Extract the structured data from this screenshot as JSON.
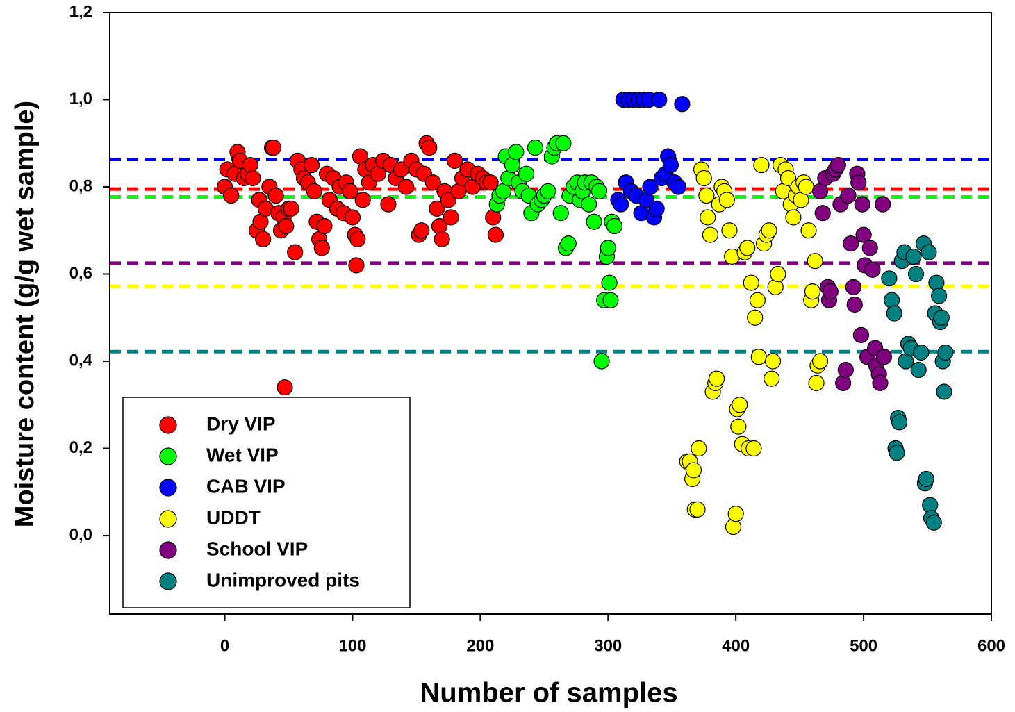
{
  "chart_data": {
    "type": "scatter",
    "x_label": "Number of samples",
    "y_label": "Moisture content (g/g wet sample)",
    "xlim": [
      -90,
      600
    ],
    "ylim": [
      -0.18,
      1.2
    ],
    "xticks": [
      0,
      100,
      200,
      300,
      400,
      500,
      600
    ],
    "yticks": [
      {
        "value": 0,
        "label": "0,0"
      },
      {
        "value": 0.2,
        "label": "0,2"
      },
      {
        "value": 0.4,
        "label": "0,4"
      },
      {
        "value": 0.6,
        "label": "0,6"
      },
      {
        "value": 0.8,
        "label": "0,8"
      },
      {
        "value": 1.0,
        "label": "1,0"
      },
      {
        "value": 1.2,
        "label": "1,2"
      }
    ],
    "legend_position": "lower left",
    "series": [
      {
        "name": "Dry VIP",
        "color": "#ff0000",
        "mean": 0.795,
        "x": [
          0,
          2,
          5,
          8,
          10,
          12,
          15,
          18,
          20,
          22,
          25,
          27,
          28,
          30,
          32,
          35,
          37,
          38,
          40,
          42,
          44,
          46,
          47,
          48,
          50,
          52,
          55,
          57,
          60,
          62,
          65,
          68,
          70,
          72,
          74,
          76,
          78,
          80,
          82,
          85,
          88,
          90,
          93,
          95,
          98,
          100,
          102,
          103,
          104,
          106,
          108,
          110,
          113,
          116,
          120,
          124,
          128,
          130,
          134,
          138,
          142,
          146,
          150,
          152,
          154,
          156,
          158,
          160,
          163,
          166,
          168,
          170,
          172,
          175,
          177,
          180,
          183,
          186,
          190,
          194,
          198,
          202,
          205,
          208,
          210,
          212
        ],
        "y": [
          0.8,
          0.84,
          0.78,
          0.83,
          0.88,
          0.86,
          0.82,
          0.83,
          0.85,
          0.82,
          0.7,
          0.77,
          0.72,
          0.68,
          0.75,
          0.8,
          0.89,
          0.89,
          0.78,
          0.74,
          0.7,
          0.73,
          0.34,
          0.71,
          0.75,
          0.75,
          0.65,
          0.86,
          0.84,
          0.82,
          0.81,
          0.85,
          0.79,
          0.72,
          0.68,
          0.66,
          0.71,
          0.83,
          0.77,
          0.82,
          0.75,
          0.8,
          0.74,
          0.81,
          0.79,
          0.73,
          0.69,
          0.62,
          0.68,
          0.87,
          0.77,
          0.84,
          0.81,
          0.85,
          0.83,
          0.86,
          0.76,
          0.85,
          0.82,
          0.84,
          0.8,
          0.86,
          0.84,
          0.69,
          0.7,
          0.83,
          0.9,
          0.89,
          0.81,
          0.75,
          0.71,
          0.68,
          0.79,
          0.77,
          0.73,
          0.86,
          0.79,
          0.82,
          0.84,
          0.8,
          0.83,
          0.82,
          0.81,
          0.81,
          0.73,
          0.69
        ]
      },
      {
        "name": "Wet VIP",
        "color": "#00ff00",
        "mean": 0.777,
        "x": [
          213,
          215,
          218,
          220,
          222,
          225,
          228,
          230,
          233,
          236,
          238,
          240,
          243,
          245,
          248,
          250,
          253,
          256,
          258,
          260,
          263,
          265,
          267,
          269,
          270,
          273,
          276,
          278,
          280,
          282,
          285,
          287,
          289,
          291,
          293,
          295,
          297,
          299,
          300,
          301,
          302,
          303,
          305
        ],
        "y": [
          0.76,
          0.78,
          0.79,
          0.87,
          0.82,
          0.85,
          0.88,
          0.81,
          0.79,
          0.83,
          0.78,
          0.74,
          0.89,
          0.76,
          0.77,
          0.78,
          0.79,
          0.87,
          0.89,
          0.9,
          0.74,
          0.9,
          0.66,
          0.67,
          0.78,
          0.8,
          0.81,
          0.77,
          0.79,
          0.81,
          0.76,
          0.81,
          0.72,
          0.8,
          0.79,
          0.4,
          0.54,
          0.64,
          0.66,
          0.58,
          0.54,
          0.72,
          0.71
        ]
      },
      {
        "name": "CAB VIP",
        "color": "#0000ff",
        "mean": 0.863,
        "x": [
          308,
          310,
          312,
          314,
          316,
          318,
          320,
          322,
          324,
          326,
          328,
          330,
          332,
          333,
          336,
          338,
          340,
          342,
          345,
          347,
          349,
          352,
          355,
          358
        ],
        "y": [
          0.77,
          0.76,
          1.0,
          0.81,
          1.0,
          0.79,
          1.0,
          0.78,
          1.0,
          0.74,
          1.0,
          0.77,
          1.0,
          0.8,
          0.73,
          0.75,
          1.0,
          0.82,
          0.83,
          0.87,
          0.85,
          0.81,
          0.8,
          0.99
        ]
      },
      {
        "name": "UDDT",
        "color": "#ffff00",
        "mean": 0.572,
        "x": [
          362,
          364,
          366,
          367,
          368,
          370,
          371,
          373,
          375,
          377,
          378,
          380,
          382,
          384,
          385,
          387,
          389,
          391,
          393,
          395,
          397,
          398,
          400,
          401,
          402,
          403,
          405,
          407,
          409,
          410,
          412,
          414,
          415,
          417,
          418,
          420,
          422,
          424,
          426,
          428,
          429,
          431,
          433,
          435,
          437,
          439,
          441,
          443,
          445,
          447,
          449,
          451,
          453,
          455,
          457,
          459,
          460,
          462,
          463,
          464,
          466
        ],
        "y": [
          0.17,
          0.17,
          0.13,
          0.15,
          0.06,
          0.06,
          0.2,
          0.84,
          0.82,
          0.78,
          0.73,
          0.69,
          0.33,
          0.35,
          0.36,
          0.76,
          0.8,
          0.79,
          0.77,
          0.7,
          0.64,
          0.02,
          0.05,
          0.29,
          0.25,
          0.3,
          0.21,
          0.65,
          0.66,
          0.2,
          0.58,
          0.2,
          0.5,
          0.54,
          0.41,
          0.85,
          0.67,
          0.69,
          0.7,
          0.36,
          0.4,
          0.57,
          0.6,
          0.85,
          0.79,
          0.84,
          0.82,
          0.76,
          0.73,
          0.78,
          0.8,
          0.77,
          0.81,
          0.8,
          0.7,
          0.54,
          0.56,
          0.63,
          0.35,
          0.39,
          0.4
        ]
      },
      {
        "name": "School VIP",
        "color": "#800080",
        "mean": 0.625,
        "x": [
          466,
          468,
          470,
          472,
          473,
          474,
          476,
          478,
          480,
          482,
          484,
          486,
          488,
          490,
          492,
          493,
          495,
          496,
          498,
          499,
          500,
          501,
          503,
          505,
          507,
          509,
          510,
          512,
          513,
          515,
          516
        ],
        "y": [
          0.79,
          0.74,
          0.82,
          0.57,
          0.54,
          0.56,
          0.83,
          0.84,
          0.85,
          0.76,
          0.35,
          0.38,
          0.78,
          0.67,
          0.57,
          0.53,
          0.83,
          0.81,
          0.46,
          0.76,
          0.69,
          0.62,
          0.41,
          0.66,
          0.61,
          0.43,
          0.39,
          0.37,
          0.35,
          0.76,
          0.41
        ]
      },
      {
        "name": "Unimproved pits",
        "color": "#008080",
        "mean": 0.422,
        "x": [
          520,
          522,
          524,
          525,
          526,
          527,
          528,
          530,
          532,
          533,
          535,
          537,
          539,
          541,
          543,
          545,
          547,
          548,
          549,
          551,
          552,
          553,
          555,
          556,
          557,
          559,
          560,
          561,
          562,
          563,
          564
        ],
        "y": [
          0.59,
          0.54,
          0.51,
          0.2,
          0.19,
          0.27,
          0.26,
          0.63,
          0.65,
          0.4,
          0.44,
          0.43,
          0.64,
          0.6,
          0.38,
          0.42,
          0.67,
          0.12,
          0.13,
          0.65,
          0.07,
          0.04,
          0.03,
          0.51,
          0.58,
          0.55,
          0.49,
          0.5,
          0.4,
          0.33,
          0.42
        ]
      }
    ]
  }
}
